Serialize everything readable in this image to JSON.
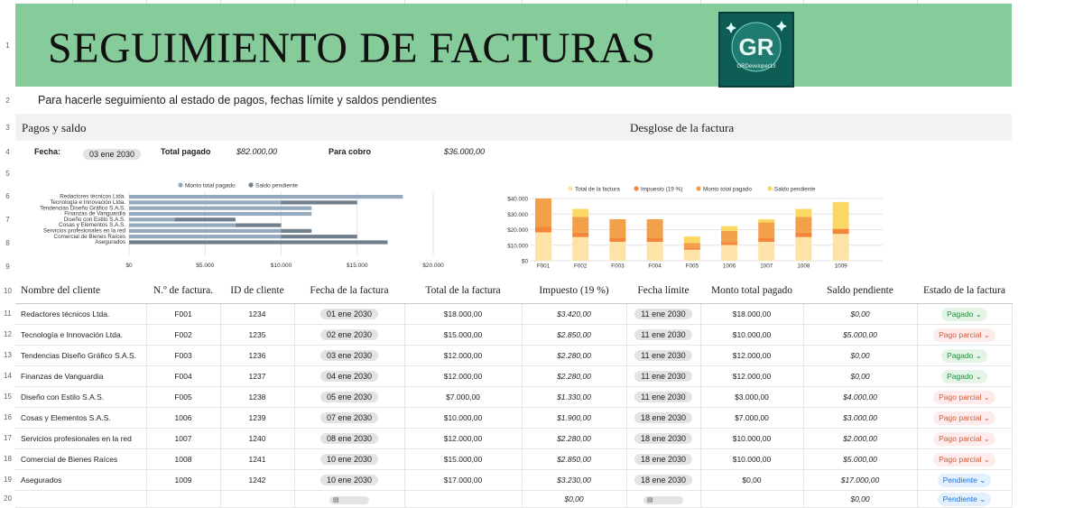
{
  "banner": {
    "title": "SEGUIMIENTO DE FACTURAS",
    "logo_text": "GR",
    "logo_sub": "GRDeveloper13"
  },
  "subtitle": "Para hacerle seguimiento al estado de pagos, fechas límite y saldos pendientes",
  "sections": {
    "left": "Pagos y saldo",
    "right": "Desglose de la factura"
  },
  "summary": {
    "fecha_label": "Fecha:",
    "fecha_value": "03 ene 2030",
    "total_label": "Total pagado",
    "total_value": "$82.000,00",
    "cobro_label": "Para cobro",
    "cobro_value": "$36.000,00"
  },
  "row_numbers": [
    "1",
    "2",
    "3",
    "4",
    "5",
    "6",
    "7",
    "8",
    "9",
    "10",
    "11",
    "12",
    "13",
    "14",
    "15",
    "16",
    "17",
    "18",
    "19",
    "20"
  ],
  "colors": {
    "paid": "#94a9bd",
    "pending": "#6f7f8e",
    "total": "#fde3a7",
    "tax": "#f4863b",
    "monto": "#f2a04a",
    "saldo": "#fbd864"
  },
  "chart_data": [
    {
      "type": "bar",
      "orientation": "horizontal",
      "stacked": true,
      "categories": [
        "Redactores técnicos Ltda.",
        "Tecnología e Innovación Ltda.",
        "Tendencias Diseño Gráfico S.A.S.",
        "Finanzas de Vanguardia",
        "Diseño con Estilo S.A.S.",
        "Cosas y Elementos S.A.S.",
        "Servicios profesionales en la red",
        "Comercial de Bienes Raíces",
        "Asegurados"
      ],
      "series": [
        {
          "name": "Monto total pagado",
          "values": [
            18000,
            10000,
            12000,
            12000,
            3000,
            7000,
            10000,
            10000,
            0
          ]
        },
        {
          "name": "Saldo pendiente",
          "values": [
            0,
            5000,
            0,
            0,
            4000,
            3000,
            2000,
            5000,
            17000
          ]
        }
      ],
      "xticks": [
        "$0",
        "$5.000",
        "$10.000",
        "$15.000",
        "$20.000"
      ],
      "xlim": [
        0,
        20000
      ],
      "legend": "top"
    },
    {
      "type": "bar",
      "stacked": true,
      "categories": [
        "F001",
        "F002",
        "F003",
        "F004",
        "F005",
        "1006",
        "1007",
        "1008",
        "1009"
      ],
      "series": [
        {
          "name": "Total de la factura",
          "values": [
            18000,
            15000,
            12000,
            12000,
            7000,
            10000,
            12000,
            15000,
            17000
          ]
        },
        {
          "name": "Impuesto (19 %)",
          "values": [
            3420,
            2850,
            2280,
            2280,
            1330,
            1900,
            2280,
            2850,
            3230
          ]
        },
        {
          "name": "Monto total pagado",
          "values": [
            18000,
            10000,
            12000,
            12000,
            3000,
            7000,
            10000,
            10000,
            0
          ]
        },
        {
          "name": "Saldo pendiente",
          "values": [
            0,
            5000,
            0,
            0,
            4000,
            3000,
            2000,
            5000,
            17000
          ]
        }
      ],
      "yticks": [
        "$0",
        "$10.000",
        "$20.000",
        "$30.000",
        "$40.000"
      ],
      "ylim": [
        0,
        40000
      ],
      "legend": "top"
    }
  ],
  "table": {
    "headers": [
      "Nombre del cliente",
      "N.º de factura.",
      "ID de cliente",
      "Fecha de la factura",
      "Total de la factura",
      "Impuesto (19 %)",
      "Fecha límite",
      "Monto total pagado",
      "Saldo pendiente",
      "Estado de la factura"
    ],
    "rows": [
      [
        "Redactores técnicos Ltda.",
        "F001",
        "1234",
        "01 ene 2030",
        "$18.000,00",
        "$3.420,00",
        "11 ene 2030",
        "$18.000,00",
        "$0,00",
        "Pagado"
      ],
      [
        "Tecnología e Innovación Ltda.",
        "F002",
        "1235",
        "02 ene 2030",
        "$15.000,00",
        "$2.850,00",
        "11 ene 2030",
        "$10.000,00",
        "$5.000,00",
        "Pago parcial"
      ],
      [
        "Tendencias Diseño Gráfico S.A.S.",
        "F003",
        "1236",
        "03 ene 2030",
        "$12.000,00",
        "$2.280,00",
        "11 ene 2030",
        "$12.000,00",
        "$0,00",
        "Pagado"
      ],
      [
        "Finanzas de Vanguardia",
        "F004",
        "1237",
        "04 ene 2030",
        "$12.000,00",
        "$2.280,00",
        "11 ene 2030",
        "$12.000,00",
        "$0,00",
        "Pagado"
      ],
      [
        "Diseño con Estilo S.A.S.",
        "F005",
        "1238",
        "05 ene 2030",
        "$7.000,00",
        "$1.330,00",
        "11 ene 2030",
        "$3.000,00",
        "$4.000,00",
        "Pago parcial"
      ],
      [
        "Cosas y Elementos S.A.S.",
        "1006",
        "1239",
        "07 ene 2030",
        "$10.000,00",
        "$1.900,00",
        "18 ene 2030",
        "$7.000,00",
        "$3.000,00",
        "Pago parcial"
      ],
      [
        "Servicios profesionales en la red",
        "1007",
        "1240",
        "08 ene 2030",
        "$12.000,00",
        "$2.280,00",
        "18 ene 2030",
        "$10.000,00",
        "$2.000,00",
        "Pago parcial"
      ],
      [
        "Comercial de Bienes Raíces",
        "1008",
        "1241",
        "10 ene 2030",
        "$15.000,00",
        "$2.850,00",
        "18 ene 2030",
        "$10.000,00",
        "$5.000,00",
        "Pago parcial"
      ],
      [
        "Asegurados",
        "1009",
        "1242",
        "10 ene 2030",
        "$17.000,00",
        "$3.230,00",
        "18 ene 2030",
        "$0,00",
        "$17.000,00",
        "Pendiente"
      ]
    ],
    "empty_row": {
      "impuesto": "$0,00",
      "saldo": "$0,00",
      "estado": "Pendiente"
    }
  }
}
